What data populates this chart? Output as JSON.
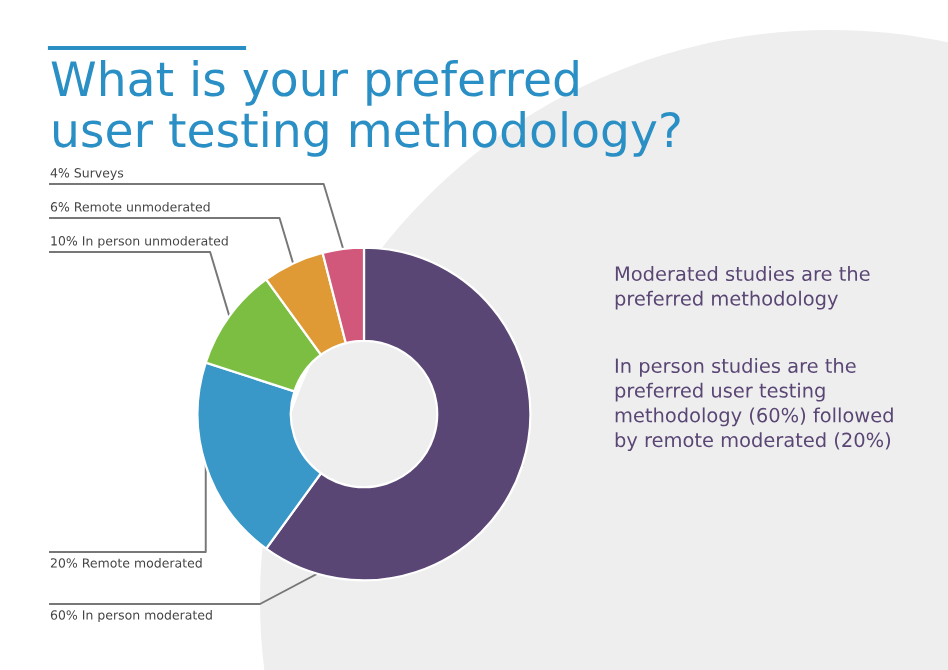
{
  "chart_data": {
    "type": "donut",
    "title": "What is your preferred\nuser testing methodology?",
    "categories": [
      "60% In person moderated",
      "20% Remote moderated",
      "10% In person unmoderated",
      "6% Remote unmoderated",
      "4% Surveys"
    ],
    "values": [
      60,
      20,
      10,
      6,
      4
    ],
    "colors": [
      "#5a4674",
      "#3a98c8",
      "#7cbe42",
      "#e09a35",
      "#d1587a"
    ],
    "annotations": [
      "Moderated studies are the\npreferred methodology",
      "In person studies are the\npreferred user testing\nmethodology (60%) followed\nby remote moderated (20%)"
    ],
    "legend": false
  }
}
